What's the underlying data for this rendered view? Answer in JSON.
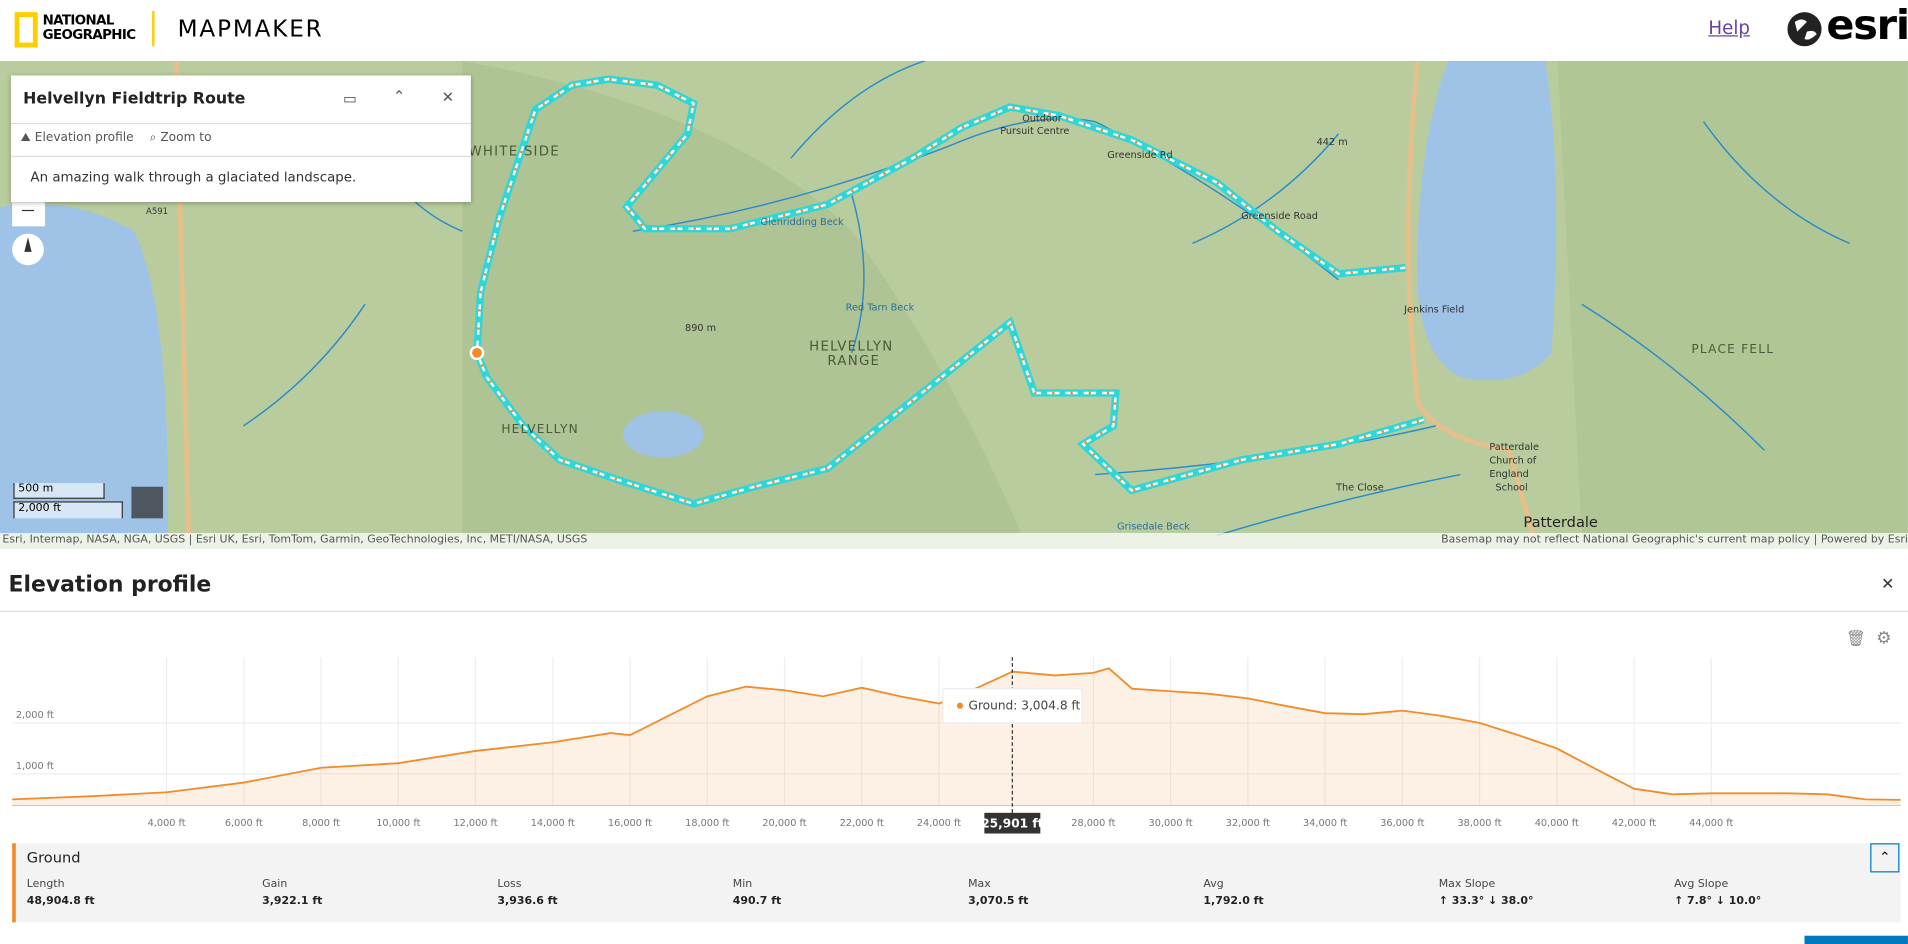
{
  "header": {
    "logo_line1": "NATIONAL",
    "logo_line2": "GEOGRAPHIC",
    "app_name": "MAPMAKER",
    "help": "Help",
    "brand": "esri"
  },
  "popup": {
    "title": "Helvellyn Fieldtrip Route",
    "actions": [
      "Elevation profile",
      "Zoom to"
    ],
    "description": "An amazing walk through a glaciated landscape."
  },
  "map": {
    "labels": [
      "WHITE SIDE",
      "HELVELLYN",
      "RANGE",
      "HELVELLYN",
      "890 m",
      "442 m",
      "PLACE FELL",
      "Patterdale",
      "Jenkins Field",
      "Greenside Road",
      "Greenside Rd",
      "The Close",
      "A591",
      "Red Tarn Beck",
      "Glenridding Beck",
      "Grisedale Beck",
      "Patterdale",
      "Church of",
      "England",
      "School",
      "Outdoor",
      "Pursuit Centre"
    ],
    "scale": [
      "500 m",
      "2,000 ft"
    ],
    "attribution_left": "Esri, Intermap, NASA, NGA, USGS | Esri UK, Esri, TomTom, Garmin, GeoTechnologies, Inc, METI/NASA, USGS",
    "attribution_right": "Basemap may not reflect National Geographic's current map policy | Powered by Esri"
  },
  "panel": {
    "title": "Elevation profile"
  },
  "chart_data": {
    "type": "area",
    "x": [
      0,
      2000,
      4000,
      6000,
      8000,
      10000,
      12000,
      14000,
      15500,
      16000,
      17000,
      18000,
      19000,
      20000,
      21000,
      22000,
      23000,
      24000,
      25000,
      25901,
      27000,
      28000,
      28400,
      29000,
      30000,
      31000,
      32000,
      33000,
      34000,
      35000,
      36000,
      37000,
      38000,
      39000,
      40000,
      41000,
      42000,
      43000,
      44000,
      45000,
      46000,
      47000,
      48000,
      48904.8
    ],
    "series": [
      {
        "name": "Ground",
        "color": "#f28c28",
        "values": [
          500,
          560,
          640,
          830,
          1120,
          1210,
          1450,
          1620,
          1800,
          1760,
          2140,
          2520,
          2710,
          2640,
          2520,
          2690,
          2520,
          2380,
          2690,
          3004.8,
          2930,
          2980,
          3070.5,
          2670,
          2620,
          2570,
          2480,
          2330,
          2190,
          2170,
          2240,
          2140,
          2000,
          1760,
          1500,
          1100,
          710,
          600,
          620,
          620,
          620,
          600,
          500,
          491
        ]
      }
    ],
    "xlim": [
      0,
      48904.8
    ],
    "ylim": [
      380,
      3290
    ],
    "xticks": [
      {
        "value": 4000,
        "label": "4,000 ft"
      },
      {
        "value": 6000,
        "label": "6,000 ft"
      },
      {
        "value": 8000,
        "label": "8,000 ft"
      },
      {
        "value": 10000,
        "label": "10,000 ft"
      },
      {
        "value": 12000,
        "label": "12,000 ft"
      },
      {
        "value": 14000,
        "label": "14,000 ft"
      },
      {
        "value": 16000,
        "label": "16,000 ft"
      },
      {
        "value": 18000,
        "label": "18,000 ft"
      },
      {
        "value": 20000,
        "label": "20,000 ft"
      },
      {
        "value": 22000,
        "label": "22,000 ft"
      },
      {
        "value": 24000,
        "label": "24,000 ft"
      },
      {
        "value": 28000,
        "label": "28,000 ft"
      },
      {
        "value": 30000,
        "label": "30,000 ft"
      },
      {
        "value": 32000,
        "label": "32,000 ft"
      },
      {
        "value": 34000,
        "label": "34,000 ft"
      },
      {
        "value": 36000,
        "label": "36,000 ft"
      },
      {
        "value": 38000,
        "label": "38,000 ft"
      },
      {
        "value": 40000,
        "label": "40,000 ft"
      },
      {
        "value": 42000,
        "label": "42,000 ft"
      },
      {
        "value": 44000,
        "label": "44,000 ft"
      }
    ],
    "yticks": [
      {
        "value": 1000,
        "label": "1,000 ft"
      },
      {
        "value": 2000,
        "label": "2,000 ft"
      }
    ],
    "grid": true,
    "cursor": {
      "x": {
        "value": 25901,
        "label": "25,901 ft"
      },
      "y": {
        "value": 3004.8,
        "label": "Ground: 3,004.8 ft"
      }
    }
  },
  "stats": {
    "items": [
      {
        "label": "Length",
        "value": "48,904.8 ft"
      },
      {
        "label": "Gain",
        "value": "3,922.1 ft"
      },
      {
        "label": "Loss",
        "value": "3,936.6 ft"
      },
      {
        "label": "Min",
        "value": "490.7 ft"
      },
      {
        "label": "Max",
        "value": "3,070.5 ft"
      },
      {
        "label": "Avg",
        "value": "1,792.0 ft"
      },
      {
        "label": "Max Slope",
        "value": "↑ 33.3° ↓ 38.0°"
      },
      {
        "label": "Avg Slope",
        "value": "↑ 7.8° ↓ 10.0°"
      }
    ]
  }
}
